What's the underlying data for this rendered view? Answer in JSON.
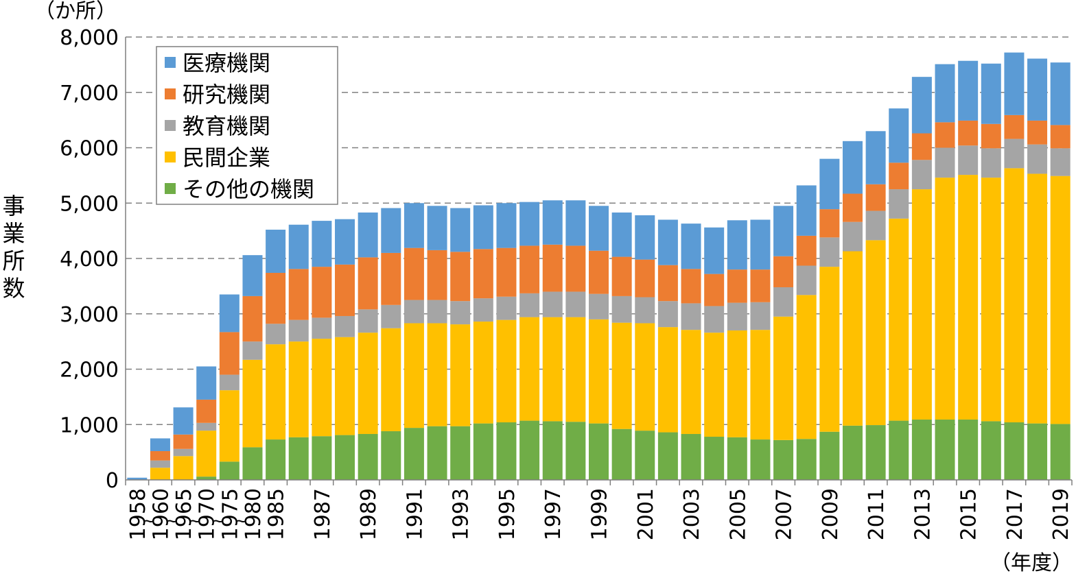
{
  "chart_data": {
    "type": "bar",
    "stacked": true,
    "unit_label": "（か所）",
    "ylabel": "事業所数",
    "xlabel": "（年度）",
    "ylim": [
      0,
      8000
    ],
    "yticks": [
      0,
      1000,
      2000,
      3000,
      4000,
      5000,
      6000,
      7000,
      8000
    ],
    "ytick_labels": [
      "0",
      "1,000",
      "2,000",
      "3,000",
      "4,000",
      "5,000",
      "6,000",
      "7,000",
      "8,000"
    ],
    "grid": "horizontal-dashed",
    "legend_position": "top-left",
    "categories": [
      "1958",
      "1960",
      "1965",
      "1970",
      "1975",
      "1980",
      "1985",
      "1986",
      "1987",
      "1988",
      "1989",
      "1990",
      "1991",
      "1992",
      "1993",
      "1994",
      "1995",
      "1996",
      "1997",
      "1998",
      "1999",
      "2000",
      "2001",
      "2002",
      "2003",
      "2004",
      "2005",
      "2006",
      "2007",
      "2008",
      "2009",
      "2010",
      "2011",
      "2012",
      "2013",
      "2014",
      "2015",
      "2016",
      "2017",
      "2018",
      "2019"
    ],
    "x_tick_labels": [
      "1958",
      "1960",
      "1965",
      "1970",
      "1975",
      "1980",
      "1985",
      "",
      "1987",
      "",
      "1989",
      "",
      "1991",
      "",
      "1993",
      "",
      "1995",
      "",
      "1997",
      "",
      "1999",
      "",
      "2001",
      "",
      "2003",
      "",
      "2005",
      "",
      "2007",
      "",
      "2009",
      "",
      "2011",
      "",
      "2013",
      "",
      "2015",
      "",
      "2017",
      "",
      "2019"
    ],
    "range_markers": [
      "~",
      "~",
      "~",
      "~",
      "~"
    ],
    "series": [
      {
        "name": "その他の機関",
        "color": "#70ad47",
        "values": [
          0,
          0,
          0,
          60,
          330,
          590,
          730,
          770,
          790,
          810,
          830,
          880,
          940,
          970,
          970,
          1020,
          1040,
          1070,
          1060,
          1050,
          1020,
          920,
          890,
          860,
          830,
          780,
          770,
          730,
          720,
          740,
          870,
          980,
          990,
          1070,
          1090,
          1090,
          1090,
          1060,
          1040,
          1020,
          1010
        ]
      },
      {
        "name": "民間企業",
        "color": "#ffc000",
        "values": [
          0,
          220,
          430,
          830,
          1290,
          1580,
          1720,
          1730,
          1760,
          1770,
          1830,
          1860,
          1890,
          1860,
          1840,
          1840,
          1850,
          1870,
          1880,
          1890,
          1880,
          1920,
          1940,
          1900,
          1880,
          1880,
          1930,
          1980,
          2230,
          2600,
          2980,
          3150,
          3340,
          3650,
          4160,
          4370,
          4420,
          4400,
          4590,
          4510,
          4480
        ]
      },
      {
        "name": "教育機関",
        "color": "#a5a5a5",
        "values": [
          0,
          130,
          130,
          140,
          280,
          330,
          370,
          390,
          380,
          380,
          420,
          420,
          420,
          420,
          420,
          420,
          420,
          430,
          460,
          460,
          460,
          480,
          470,
          470,
          480,
          480,
          500,
          500,
          530,
          530,
          530,
          530,
          530,
          530,
          530,
          540,
          530,
          530,
          530,
          530,
          500
        ]
      },
      {
        "name": "研究機関",
        "color": "#ed7d31",
        "values": [
          0,
          170,
          260,
          420,
          770,
          820,
          920,
          920,
          920,
          930,
          940,
          940,
          940,
          900,
          890,
          890,
          880,
          860,
          850,
          830,
          780,
          710,
          680,
          650,
          620,
          580,
          600,
          590,
          560,
          540,
          510,
          510,
          480,
          480,
          480,
          460,
          450,
          440,
          430,
          430,
          420
        ]
      },
      {
        "name": "医療機関",
        "color": "#5b9bd5",
        "values": [
          40,
          230,
          490,
          600,
          680,
          740,
          780,
          800,
          830,
          820,
          810,
          810,
          810,
          800,
          790,
          790,
          810,
          790,
          800,
          820,
          810,
          800,
          800,
          820,
          820,
          840,
          890,
          900,
          910,
          910,
          910,
          950,
          960,
          980,
          1020,
          1050,
          1080,
          1090,
          1130,
          1120,
          1130
        ]
      }
    ],
    "legend": [
      "医療機関",
      "研究機関",
      "教育機関",
      "民間企業",
      "その他の機関"
    ]
  }
}
